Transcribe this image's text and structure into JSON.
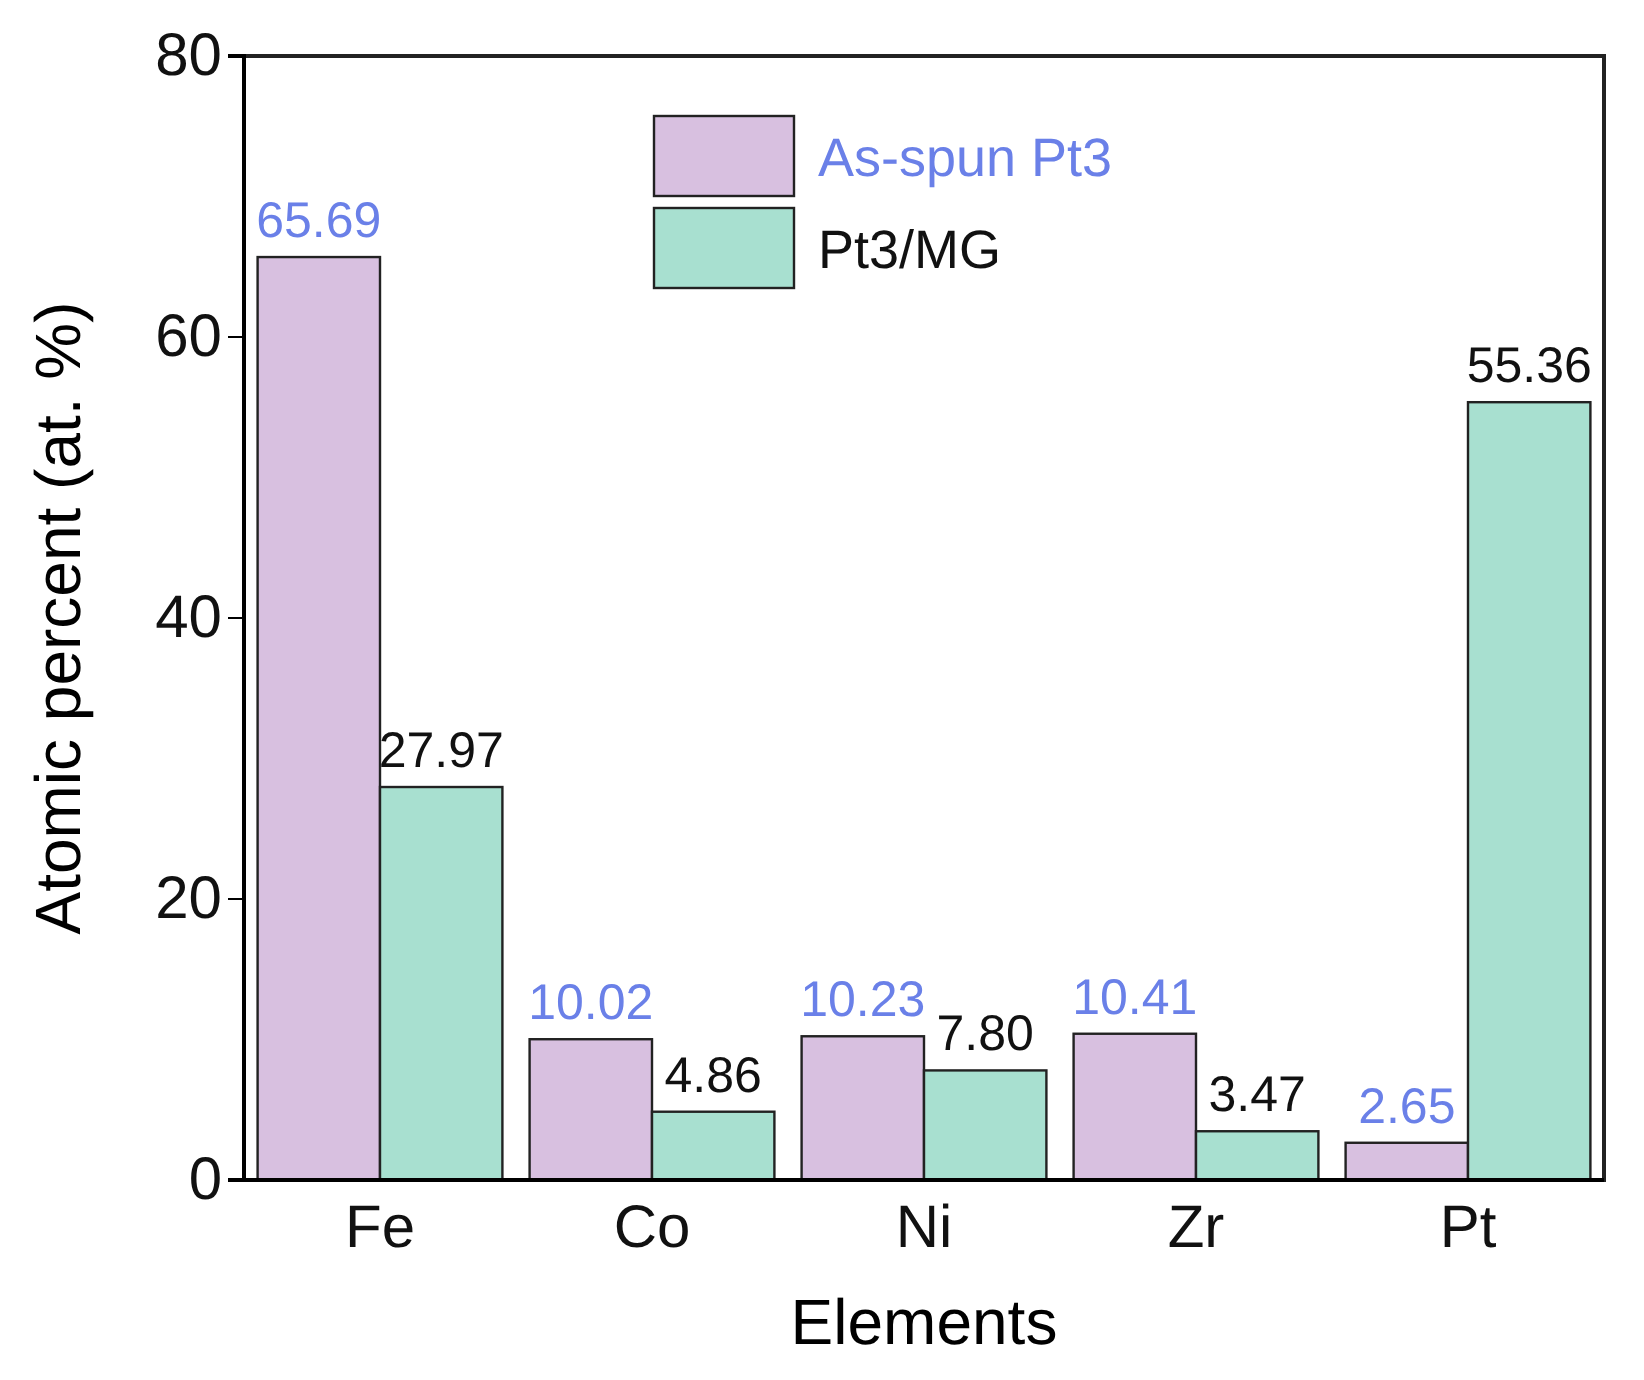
{
  "chart_data": {
    "type": "bar",
    "xlabel": "Elements",
    "ylabel": "Atomic percent (at. %)",
    "categories": [
      "Fe",
      "Co",
      "Ni",
      "Zr",
      "Pt"
    ],
    "series": [
      {
        "name": "As-spun Pt3",
        "color": "#d8c0e0",
        "values": [
          65.69,
          10.02,
          10.23,
          10.41,
          2.65
        ],
        "value_labels": [
          "65.69",
          "10.02",
          "10.23",
          "10.41",
          "2.65"
        ]
      },
      {
        "name": "Pt3/MG",
        "color": "#a8e0d0",
        "values": [
          27.97,
          4.86,
          7.8,
          3.47,
          55.36
        ],
        "value_labels": [
          "27.97",
          "4.86",
          "7.80",
          "3.47",
          "55.36"
        ]
      }
    ],
    "ylim": [
      0,
      80
    ],
    "yticks": [
      0,
      20,
      40,
      60,
      80
    ],
    "grid": false,
    "legend": "top"
  }
}
